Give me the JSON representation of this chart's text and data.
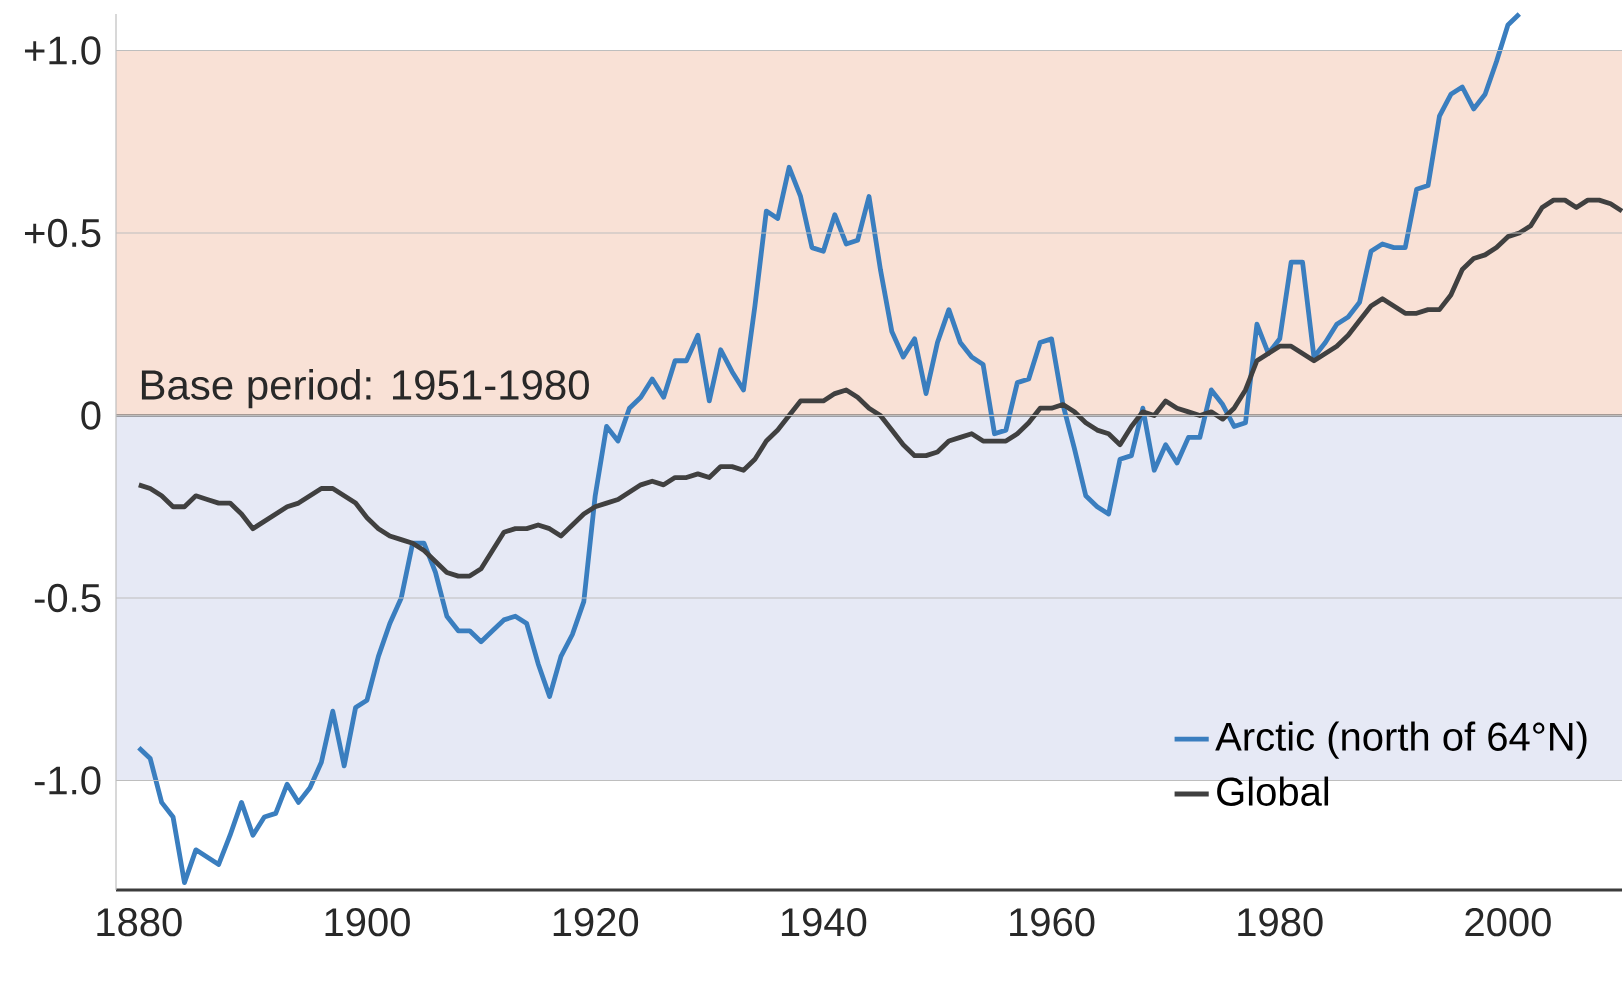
{
  "chart_data": {
    "type": "line",
    "x": [
      1880,
      1881,
      1882,
      1883,
      1884,
      1885,
      1886,
      1887,
      1888,
      1889,
      1890,
      1891,
      1892,
      1893,
      1894,
      1895,
      1896,
      1897,
      1898,
      1899,
      1900,
      1901,
      1902,
      1903,
      1904,
      1905,
      1906,
      1907,
      1908,
      1909,
      1910,
      1911,
      1912,
      1913,
      1914,
      1915,
      1916,
      1917,
      1918,
      1919,
      1920,
      1921,
      1922,
      1923,
      1924,
      1925,
      1926,
      1927,
      1928,
      1929,
      1930,
      1931,
      1932,
      1933,
      1934,
      1935,
      1936,
      1937,
      1938,
      1939,
      1940,
      1941,
      1942,
      1943,
      1944,
      1945,
      1946,
      1947,
      1948,
      1949,
      1950,
      1951,
      1952,
      1953,
      1954,
      1955,
      1956,
      1957,
      1958,
      1959,
      1960,
      1961,
      1962,
      1963,
      1964,
      1965,
      1966,
      1967,
      1968,
      1969,
      1970,
      1971,
      1972,
      1973,
      1974,
      1975,
      1976,
      1977,
      1978,
      1979,
      1980,
      1981,
      1982,
      1983,
      1984,
      1985,
      1986,
      1987,
      1988,
      1989,
      1990,
      1991,
      1992,
      1993,
      1994,
      1995,
      1996,
      1997,
      1998,
      1999,
      2000,
      2001,
      2002,
      2003,
      2004,
      2005,
      2006,
      2007,
      2008,
      2009,
      2010
    ],
    "series": [
      {
        "name": "Arctic (north of 64°N)",
        "color": "#3a7ebf",
        "values": [
          -0.91,
          -0.94,
          -1.06,
          -1.1,
          -1.28,
          -1.19,
          -1.21,
          -1.23,
          -1.15,
          -1.06,
          -1.15,
          -1.1,
          -1.09,
          -1.01,
          -1.06,
          -1.02,
          -0.95,
          -0.81,
          -0.96,
          -0.8,
          -0.78,
          -0.66,
          -0.57,
          -0.5,
          -0.35,
          -0.35,
          -0.43,
          -0.55,
          -0.59,
          -0.59,
          -0.62,
          -0.59,
          -0.56,
          -0.55,
          -0.57,
          -0.68,
          -0.77,
          -0.66,
          -0.6,
          -0.51,
          -0.22,
          -0.03,
          -0.07,
          0.02,
          0.05,
          0.1,
          0.05,
          0.15,
          0.15,
          0.22,
          0.04,
          0.18,
          0.12,
          0.07,
          0.3,
          0.56,
          0.54,
          0.68,
          0.6,
          0.46,
          0.45,
          0.55,
          0.47,
          0.48,
          0.6,
          0.4,
          0.23,
          0.16,
          0.21,
          0.06,
          0.2,
          0.29,
          0.2,
          0.16,
          0.14,
          -0.05,
          -0.04,
          0.09,
          0.1,
          0.2,
          0.21,
          0.03,
          -0.09,
          -0.22,
          -0.25,
          -0.27,
          -0.12,
          -0.11,
          0.02,
          -0.15,
          -0.08,
          -0.13,
          -0.06,
          -0.06,
          0.07,
          0.03,
          -0.03,
          -0.02,
          0.25,
          0.17,
          0.21,
          0.42,
          0.42,
          0.16,
          0.2,
          0.25,
          0.27,
          0.31,
          0.45,
          0.47,
          0.46,
          0.46,
          0.62,
          0.63,
          0.82,
          0.88,
          0.9,
          0.84,
          0.88,
          0.97,
          1.07,
          1.1,
          null,
          null,
          null,
          null,
          null,
          null,
          null,
          null,
          null
        ]
      },
      {
        "name": "Global",
        "color": "#404040",
        "values": [
          -0.19,
          -0.2,
          -0.22,
          -0.25,
          -0.25,
          -0.22,
          -0.23,
          -0.24,
          -0.24,
          -0.27,
          -0.31,
          -0.29,
          -0.27,
          -0.25,
          -0.24,
          -0.22,
          -0.2,
          -0.2,
          -0.22,
          -0.24,
          -0.28,
          -0.31,
          -0.33,
          -0.34,
          -0.35,
          -0.37,
          -0.4,
          -0.43,
          -0.44,
          -0.44,
          -0.42,
          -0.37,
          -0.32,
          -0.31,
          -0.31,
          -0.3,
          -0.31,
          -0.33,
          -0.3,
          -0.27,
          -0.25,
          -0.24,
          -0.23,
          -0.21,
          -0.19,
          -0.18,
          -0.19,
          -0.17,
          -0.17,
          -0.16,
          -0.17,
          -0.14,
          -0.14,
          -0.15,
          -0.12,
          -0.07,
          -0.04,
          0.0,
          0.04,
          0.04,
          0.04,
          0.06,
          0.07,
          0.05,
          0.02,
          0.0,
          -0.04,
          -0.08,
          -0.11,
          -0.11,
          -0.1,
          -0.07,
          -0.06,
          -0.05,
          -0.07,
          -0.07,
          -0.07,
          -0.05,
          -0.02,
          0.02,
          0.02,
          0.03,
          0.01,
          -0.02,
          -0.04,
          -0.05,
          -0.08,
          -0.03,
          0.01,
          0.0,
          0.04,
          0.02,
          0.01,
          0.0,
          0.01,
          -0.01,
          0.02,
          0.07,
          0.15,
          0.17,
          0.19,
          0.19,
          0.17,
          0.15,
          0.17,
          0.19,
          0.22,
          0.26,
          0.3,
          0.32,
          0.3,
          0.28,
          0.28,
          0.29,
          0.29,
          0.33,
          0.4,
          0.43,
          0.44,
          0.46,
          0.49,
          0.5,
          0.52,
          0.57,
          0.59,
          0.59,
          0.57,
          0.59,
          0.59,
          0.58,
          0.56
        ]
      }
    ],
    "xlim": [
      1878,
      2010
    ],
    "ylim": [
      -1.3,
      1.1
    ],
    "xticks": [
      1880,
      1900,
      1920,
      1940,
      1960,
      1980,
      2000
    ],
    "yticks": [
      {
        "value": -1,
        "label": "-1.0"
      },
      {
        "value": -0.5,
        "label": "-0.5"
      },
      {
        "value": 0,
        "label": "0"
      },
      {
        "value": 0.5,
        "label": "+0.5"
      },
      {
        "value": 1,
        "label": "+1.0"
      }
    ],
    "ref_lines": [
      {
        "axis": "y",
        "value": 0,
        "color": "#555555"
      }
    ],
    "annotations": [
      "Base period: 1951-1980"
    ],
    "bands": [
      {
        "axis": "y",
        "from": 0,
        "to": 1,
        "color": "#f9e1d6"
      },
      {
        "axis": "y",
        "from": -1,
        "to": 0,
        "color": "#e6e9f5"
      }
    ],
    "grid": "y",
    "legend": "bottom right",
    "marker": "none",
    "line_style": "solid"
  }
}
